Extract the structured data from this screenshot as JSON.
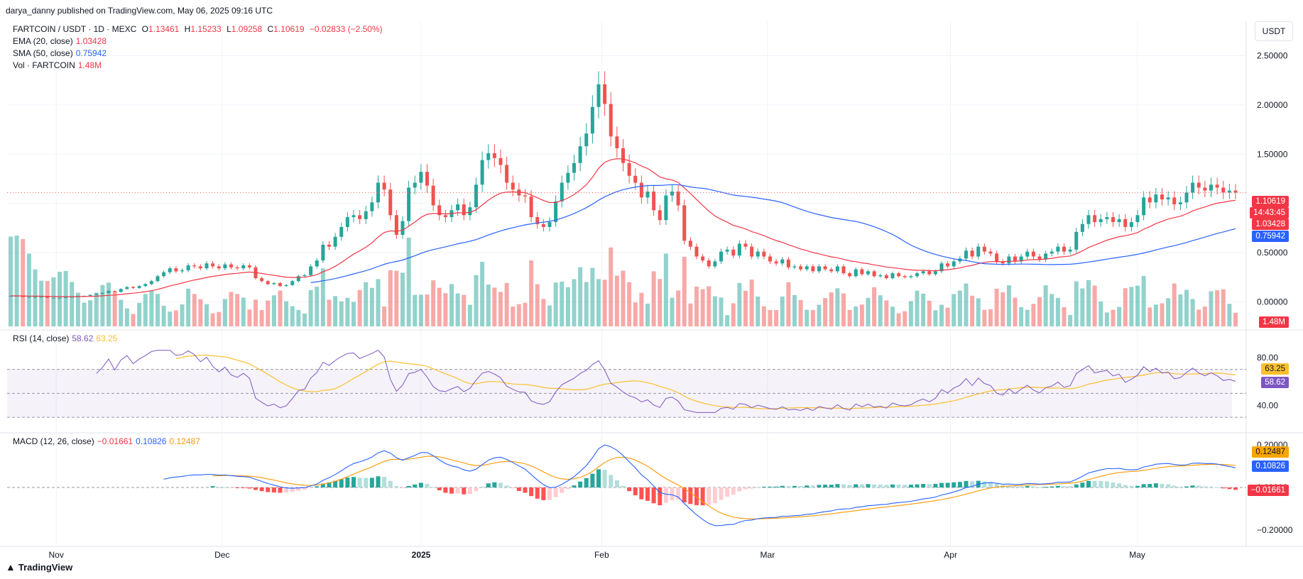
{
  "header": {
    "published": "darya_danny published on TradingView.com, May 06, 2025 09:16 UTC",
    "symbol": "FARTCOIN / USDT · 1D · MEXC",
    "ohlc": {
      "o_label": "O",
      "o": "1.13461",
      "h_label": "H",
      "h": "1.15233",
      "l_label": "L",
      "l": "1.09258",
      "c_label": "C",
      "c": "1.10619",
      "change": "−0.02833 (−2.50%)"
    },
    "ema_label": "EMA (20, close)",
    "ema_value": "1.03428",
    "sma_label": "SMA (50, close)",
    "sma_value": "0.75942",
    "vol_label": "Vol · FARTCOIN",
    "vol_value": "1.48M",
    "currency": "USDT"
  },
  "rsi_legend": {
    "label": "RSI (14, close)",
    "rsi": "58.62",
    "ma": "63.25"
  },
  "macd_legend": {
    "label": "MACD (12, 26, close)",
    "hist": "−0.01661",
    "macd": "0.10826",
    "signal": "0.12487"
  },
  "price_tags": {
    "last": "1.10619",
    "countdown": "14:43:45",
    "ema": "1.03428",
    "sma": "0.75942",
    "volume": "1.48M"
  },
  "rsi_tags": {
    "ma": "63.25",
    "rsi": "58.62"
  },
  "macd_tags": {
    "signal": "0.12487",
    "macd": "0.10826",
    "hist": "−0.01661"
  },
  "footer": {
    "brand": "TradingView"
  },
  "colors": {
    "up": "#26a69a",
    "down": "#ef5350",
    "ema": "#f23645",
    "sma": "#2962ff",
    "rsi": "#7e57c2",
    "rsi_ma": "#fbc02d",
    "macd": "#2962ff",
    "signal": "#ff9800"
  },
  "chart_data": {
    "type": "candlestick",
    "title": "FARTCOIN / USDT · 1D · MEXC",
    "x_ticks": [
      "Nov",
      "Dec",
      "2025",
      "Feb",
      "Mar",
      "Apr",
      "May"
    ],
    "price_axis": {
      "ticks": [
        "2.50000",
        "2.00000",
        "1.50000",
        "1.00000",
        "0.50000",
        "0.00000"
      ],
      "range": [
        -0.25,
        2.85
      ]
    },
    "rsi_axis": {
      "ticks": [
        "80.00",
        "40.00"
      ],
      "range": [
        20,
        100
      ]
    },
    "macd_axis": {
      "ticks": [
        "0.20000",
        "0.00000",
        "−0.20000"
      ],
      "range": [
        -0.26,
        0.24
      ]
    },
    "series": [
      {
        "name": "close",
        "values": [
          0.06,
          0.06,
          0.05,
          0.05,
          0.05,
          0.05,
          0.04,
          0.04,
          0.04,
          0.05,
          0.05,
          0.06,
          0.06,
          0.07,
          0.08,
          0.09,
          0.11,
          0.1,
          0.13,
          0.15,
          0.14,
          0.16,
          0.18,
          0.21,
          0.26,
          0.3,
          0.34,
          0.31,
          0.32,
          0.37,
          0.36,
          0.34,
          0.39,
          0.36,
          0.34,
          0.38,
          0.35,
          0.34,
          0.37,
          0.35,
          0.24,
          0.21,
          0.18,
          0.19,
          0.16,
          0.17,
          0.21,
          0.26,
          0.27,
          0.36,
          0.42,
          0.58,
          0.56,
          0.66,
          0.76,
          0.86,
          0.88,
          0.84,
          0.92,
          1.01,
          1.21,
          1.14,
          0.88,
          0.68,
          0.82,
          1.16,
          1.21,
          1.32,
          1.18,
          0.98,
          0.88,
          0.86,
          0.93,
          0.99,
          0.88,
          0.96,
          1.19,
          1.44,
          1.51,
          1.46,
          1.39,
          1.21,
          1.14,
          1.08,
          1.07,
          0.86,
          0.79,
          0.76,
          0.81,
          1.02,
          1.21,
          1.31,
          1.41,
          1.58,
          1.71,
          1.98,
          2.21,
          2.01,
          1.68,
          1.56,
          1.41,
          1.28,
          1.21,
          1.06,
          1.12,
          0.93,
          0.83,
          1.08,
          1.12,
          0.98,
          0.62,
          0.56,
          0.46,
          0.42,
          0.36,
          0.41,
          0.51,
          0.53,
          0.47,
          0.59,
          0.56,
          0.46,
          0.51,
          0.46,
          0.41,
          0.39,
          0.43,
          0.35,
          0.36,
          0.33,
          0.36,
          0.31,
          0.36,
          0.33,
          0.31,
          0.36,
          0.29,
          0.26,
          0.33,
          0.28,
          0.31,
          0.26,
          0.27,
          0.24,
          0.29,
          0.26,
          0.25,
          0.26,
          0.29,
          0.31,
          0.28,
          0.31,
          0.39,
          0.36,
          0.41,
          0.44,
          0.52,
          0.46,
          0.56,
          0.51,
          0.49,
          0.41,
          0.39,
          0.46,
          0.41,
          0.46,
          0.51,
          0.46,
          0.43,
          0.49,
          0.51,
          0.56,
          0.51,
          0.53,
          0.71,
          0.79,
          0.88,
          0.81,
          0.84,
          0.86,
          0.81,
          0.84,
          0.76,
          0.81,
          0.88,
          1.06,
          1.01,
          1.09,
          1.04,
          1.06,
          0.99,
          1.01,
          1.11,
          1.21,
          1.16,
          1.13,
          1.19,
          1.16,
          1.11,
          1.13,
          1.11
        ]
      },
      {
        "name": "EMA (20, close)",
        "final": 1.03428
      },
      {
        "name": "SMA (50, close)",
        "final": 0.75942
      }
    ],
    "volume": {
      "name": "Vol · FARTCOIN",
      "last": "1.48M"
    },
    "rsi": {
      "name": "RSI (14, close)",
      "last": 58.62,
      "ma_last": 63.25,
      "levels": [
        70,
        50,
        30
      ]
    },
    "macd": {
      "name": "MACD (12, 26, close)",
      "macd_last": 0.10826,
      "signal_last": 0.12487,
      "hist_last": -0.01661
    }
  }
}
